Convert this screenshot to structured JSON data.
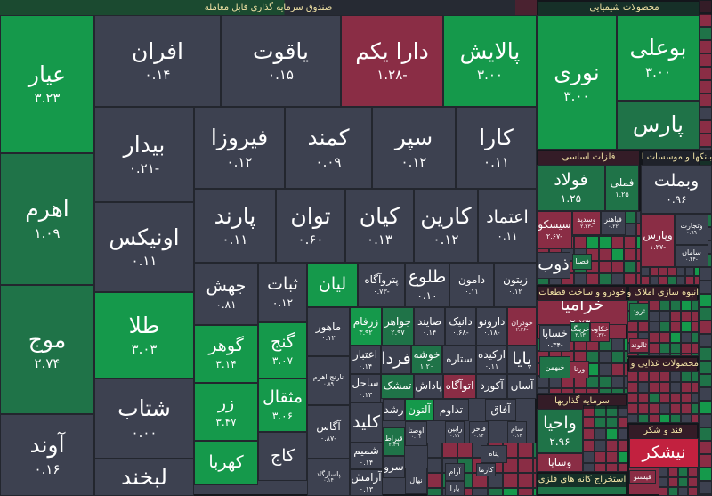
{
  "palette": {
    "neutral": "#3d4150",
    "up_strong": "#15994b",
    "up": "#1f7348",
    "down": "#8a2d45",
    "down_bright": "#c2213f"
  },
  "sectors": [
    {
      "title": "صندوق سرمایه گذاری قابل معامله"
    },
    {
      "title": "محصولات شیمیایی"
    },
    {
      "title": "فلزات اساسی"
    },
    {
      "title": "بانکها و موسسات اعتباری"
    },
    {
      "title": "خودرو و ساخت قطعات"
    },
    {
      "title": "سرمایه گذاریها"
    },
    {
      "title": "انبوه سازی املاک و مستغلات"
    },
    {
      "title": "محصولات غذایی و آشامیدنی"
    },
    {
      "title": "قند و شکر"
    },
    {
      "title": "استخراج کانه های فلزی"
    }
  ],
  "cells": [
    {
      "label": "عیار",
      "value": "۳.۲۳",
      "tone": "up_strong"
    },
    {
      "label": "اهرم",
      "value": "۱.۰۹",
      "tone": "up"
    },
    {
      "label": "موج",
      "value": "۲.۷۴",
      "tone": "up"
    },
    {
      "label": "آوند",
      "value": "۰.۱۶",
      "tone": "neutral"
    },
    {
      "label": "افران",
      "value": "۰.۱۴",
      "tone": "neutral"
    },
    {
      "label": "یاقوت",
      "value": "۰.۱۵",
      "tone": "neutral"
    },
    {
      "label": "دارا یکم",
      "value": "-۱.۲۸",
      "tone": "down"
    },
    {
      "label": "پالایش",
      "value": "۳.۰۰",
      "tone": "up_strong"
    },
    {
      "label": "بیدار",
      "value": "-۰.۲۱",
      "tone": "neutral"
    },
    {
      "label": "فیروزا",
      "value": "۰.۱۲",
      "tone": "neutral"
    },
    {
      "label": "کمند",
      "value": "۰.۰۹",
      "tone": "neutral"
    },
    {
      "label": "سپر",
      "value": "۰.۱۲",
      "tone": "neutral"
    },
    {
      "label": "کارا",
      "value": "۰.۱۱",
      "tone": "neutral"
    },
    {
      "label": "اونیکس",
      "value": "۰.۱۱",
      "tone": "neutral"
    },
    {
      "label": "پارند",
      "value": "۰.۱۱",
      "tone": "neutral"
    },
    {
      "label": "توان",
      "value": "۰.۶۰",
      "tone": "neutral"
    },
    {
      "label": "کیان",
      "value": "۰.۱۳",
      "tone": "neutral"
    },
    {
      "label": "کارین",
      "value": "۰.۱۲",
      "tone": "neutral"
    },
    {
      "label": "اعتماد",
      "value": "۰.۱۱",
      "tone": "neutral"
    },
    {
      "label": "طلا",
      "value": "۳.۰۳",
      "tone": "up_strong"
    },
    {
      "label": "شتاب",
      "value": "۰.۰۰",
      "tone": "neutral"
    },
    {
      "label": "لبخند",
      "value": "",
      "tone": "neutral"
    },
    {
      "label": "جهش",
      "value": "۰.۸۱",
      "tone": "neutral"
    },
    {
      "label": "ثبات",
      "value": "۰.۱۲",
      "tone": "neutral"
    },
    {
      "label": "لیان",
      "value": "",
      "tone": "up_strong"
    },
    {
      "label": "گوهر",
      "value": "۳.۱۴",
      "tone": "up_strong"
    },
    {
      "label": "گنج",
      "value": "۳.۰۷",
      "tone": "up_strong"
    },
    {
      "label": "زر",
      "value": "۳.۴۷",
      "tone": "up_strong"
    },
    {
      "label": "مثقال",
      "value": "۳.۰۶",
      "tone": "up_strong"
    },
    {
      "label": "کهربا",
      "value": "",
      "tone": "up_strong"
    },
    {
      "label": "کاج",
      "value": "",
      "tone": "neutral"
    },
    {
      "label": "پتروآگاه",
      "value": "-۰.۷۳",
      "tone": "neutral"
    },
    {
      "label": "طلوع",
      "value": "۰.۱۰",
      "tone": "neutral"
    },
    {
      "label": "دامون",
      "value": "۰.۱۱",
      "tone": "neutral"
    },
    {
      "label": "زیتون",
      "value": "۰.۱۲",
      "tone": "neutral"
    },
    {
      "label": "ماهور",
      "value": "۰.۱۲",
      "tone": "neutral"
    },
    {
      "label": "زرفام",
      "value": "۳.۹۲",
      "tone": "up_strong"
    },
    {
      "label": "جواهر",
      "value": "۲.۹۷",
      "tone": "up"
    },
    {
      "label": "صایند",
      "value": "۰.۱۴",
      "tone": "neutral"
    },
    {
      "label": "دانیک",
      "value": "-۰.۶۸",
      "tone": "neutral"
    },
    {
      "label": "دارونو",
      "value": "-۰.۱۸",
      "tone": "neutral"
    },
    {
      "label": "خودران",
      "value": "-۲.۳۶",
      "tone": "down"
    },
    {
      "label": "نارنج اهرم",
      "value": "۰.۸۹",
      "tone": "neutral"
    },
    {
      "label": "آگاس",
      "value": "-۰.۸۷",
      "tone": "neutral"
    },
    {
      "label": "پاسارگاد",
      "value": "۰.۱۴",
      "tone": "neutral"
    },
    {
      "label": "اعتبار",
      "value": "۰.۱۴",
      "tone": "neutral"
    },
    {
      "label": "فردا",
      "value": "",
      "tone": "neutral"
    },
    {
      "label": "خوشه",
      "value": "۱.۲۰",
      "tone": "up"
    },
    {
      "label": "ستاره",
      "value": "",
      "tone": "neutral"
    },
    {
      "label": "ارکیده",
      "value": "۰.۱۱",
      "tone": "neutral"
    },
    {
      "label": "پایا",
      "value": "",
      "tone": "neutral"
    },
    {
      "label": "ساحل",
      "value": "۰.۱۳",
      "tone": "neutral"
    },
    {
      "label": "تمشک",
      "value": "",
      "tone": "up"
    },
    {
      "label": "پاداش",
      "value": "",
      "tone": "neutral"
    },
    {
      "label": "اتوآگاه",
      "value": "",
      "tone": "down"
    },
    {
      "label": "آکورد",
      "value": "",
      "tone": "neutral"
    },
    {
      "label": "آسان",
      "value": "",
      "tone": "neutral"
    },
    {
      "label": "کلید",
      "value": "",
      "tone": "neutral"
    },
    {
      "label": "رشد",
      "value": "",
      "tone": "neutral"
    },
    {
      "label": "آلتون",
      "value": "",
      "tone": "up_strong"
    },
    {
      "label": "تداوم",
      "value": "",
      "tone": "neutral"
    },
    {
      "label": "آفاق",
      "value": "",
      "tone": "neutral"
    },
    {
      "label": "قیراط",
      "value": "۲.۳۹",
      "tone": "up"
    },
    {
      "label": "شمیم",
      "value": "۰.۱۴",
      "tone": "neutral"
    },
    {
      "label": "آرامش",
      "value": "۰.۱۳",
      "tone": "neutral"
    },
    {
      "label": "سرو",
      "value": "",
      "tone": "neutral"
    },
    {
      "label": "اوصتا",
      "value": "۰.۱۱",
      "tone": "neutral"
    },
    {
      "label": "نهال",
      "value": "",
      "tone": "neutral"
    },
    {
      "label": "رابین",
      "value": "۰.۱۱",
      "tone": "neutral"
    },
    {
      "label": "فاخر",
      "value": "۰.۱۴",
      "tone": "neutral"
    },
    {
      "label": "سام",
      "value": "۰.۱۴",
      "tone": "neutral"
    },
    {
      "label": "پناه",
      "value": "",
      "tone": "neutral"
    },
    {
      "label": "آرام",
      "value": "",
      "tone": "neutral"
    },
    {
      "label": "کارما",
      "value": "",
      "tone": "neutral"
    },
    {
      "label": "یارا",
      "value": "",
      "tone": "neutral"
    },
    {
      "label": "نوری",
      "value": "۳.۰۰",
      "tone": "up_strong"
    },
    {
      "label": "بوعلی",
      "value": "۳.۰۰",
      "tone": "up_strong"
    },
    {
      "label": "پارس",
      "value": "",
      "tone": "up"
    },
    {
      "label": "فولاد",
      "value": "۱.۲۵",
      "tone": "up"
    },
    {
      "label": "فملی",
      "value": "۱.۲۵",
      "tone": "up"
    },
    {
      "label": "سیسکو",
      "value": "-۲.۶۷",
      "tone": "down"
    },
    {
      "label": "وسدید",
      "value": "-۲.۲۳",
      "tone": "down"
    },
    {
      "label": "فباهنر",
      "value": "۰.۲۲",
      "tone": "neutral"
    },
    {
      "label": "فصبا",
      "value": "",
      "tone": "up"
    },
    {
      "label": "ذوب",
      "value": "",
      "tone": "neutral"
    },
    {
      "label": "وبملت",
      "value": "۰.۹۶",
      "tone": "neutral"
    },
    {
      "label": "وپارس",
      "value": "-۱.۲۷",
      "tone": "down"
    },
    {
      "label": "وتجارت",
      "value": "۰.۹۹",
      "tone": "neutral"
    },
    {
      "label": "سامان",
      "value": "-۰.۴۴",
      "tone": "neutral"
    },
    {
      "label": "خرامیا",
      "value": "-۲.۷۳",
      "tone": "down"
    },
    {
      "label": "خساپا",
      "value": "-۰.۳۴",
      "tone": "neutral"
    },
    {
      "label": "خرینگ",
      "value": "۲.۱۳",
      "tone": "up"
    },
    {
      "label": "خکاوه",
      "value": "-۰.۳۷",
      "tone": "down"
    },
    {
      "label": "خبهمن",
      "value": "",
      "tone": "up"
    },
    {
      "label": "ورنا",
      "value": "",
      "tone": "down"
    },
    {
      "label": "واحیا",
      "value": "۲.۹۶",
      "tone": "up"
    },
    {
      "label": "وساپا",
      "value": "",
      "tone": "down"
    },
    {
      "label": "ثرود",
      "value": "",
      "tone": "up"
    },
    {
      "label": "ثالوند",
      "value": "",
      "tone": "down"
    },
    {
      "label": "نیشکر",
      "value": "",
      "tone": "down_bright"
    },
    {
      "label": "قیستو",
      "value": "",
      "tone": "down"
    }
  ]
}
